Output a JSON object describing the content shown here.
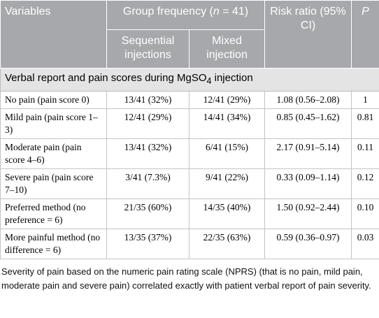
{
  "table": {
    "header": {
      "variables": "Variables",
      "group_before": "Group frequency (",
      "group_italic": "n",
      "group_after": " = 41)",
      "risk_ratio": "Risk ratio (95% CI)",
      "p": "P",
      "sequential": "Sequential injections",
      "mixed": "Mixed injection"
    },
    "section": {
      "before": "Verbal report and pain scores during MgSO",
      "subscript": "4",
      "after": " injection"
    },
    "rows": [
      [
        "No pain (pain score 0)",
        "13/41 (32%)",
        "12/41 (29%)",
        "1.08 (0.56–2.08)",
        "1"
      ],
      [
        "Mild pain (pain score 1–3)",
        "12/41 (29%)",
        "14/41 (34%)",
        "0.85 (0.45–1.62)",
        "0.81"
      ],
      [
        "Moderate pain (pain score 4–6)",
        "13/41 (32%)",
        "6/41 (15%)",
        "2.17 (0.91–5.14)",
        "0.11"
      ],
      [
        "Severe pain (pain score 7–10)",
        "3/41 (7.3%)",
        "9/41 (22%)",
        "0.33 (0.09–1.14)",
        "0.12"
      ],
      [
        "Preferred method (no preference = 6)",
        "21/35 (60%)",
        "14/35 (40%)",
        "1.50 (0.92–2.44)",
        "0.10"
      ],
      [
        "More painful method (no difference = 6)",
        "13/35 (37%)",
        "22/35 (63%)",
        "0.59 (0.36–0.97)",
        "0.03"
      ]
    ],
    "footnote": "Severity of pain based on the numeric pain rating scale (NPRS) (that is no pain, mild pain, moderate pain and severe pain) correlated exactly with patient verbal report of pain severity."
  }
}
